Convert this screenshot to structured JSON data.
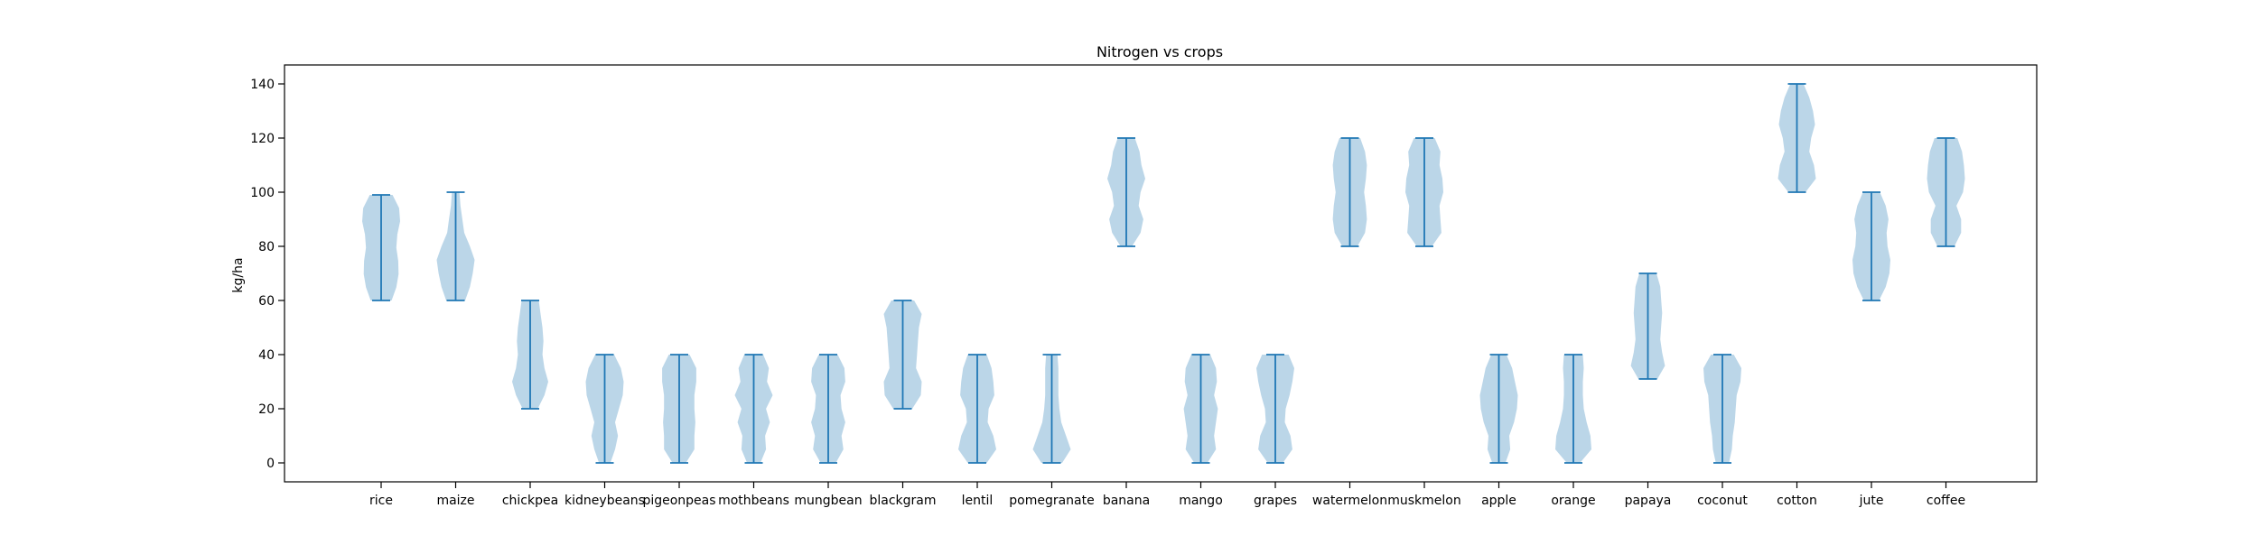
{
  "colors": {
    "violin_fill": "#1f77b4",
    "violin_line": "#1f77b4",
    "axis": "#000000",
    "background": "#ffffff"
  },
  "chart_data": {
    "type": "violin",
    "title": "Nitrogen vs crops",
    "xlabel": "",
    "ylabel": "kg/ha",
    "ylim": [
      -7,
      147
    ],
    "yticks": [
      0,
      20,
      40,
      60,
      80,
      100,
      120,
      140
    ],
    "grid": false,
    "categories": [
      "rice",
      "maize",
      "chickpea",
      "kidneybeans",
      "pigeonpeas",
      "mothbeans",
      "mungbean",
      "blackgram",
      "lentil",
      "pomegranate",
      "banana",
      "mango",
      "grapes",
      "watermelon",
      "muskmelon",
      "apple",
      "orange",
      "papaya",
      "coconut",
      "cotton",
      "jute",
      "coffee"
    ],
    "ranges": [
      [
        60,
        99
      ],
      [
        60,
        100
      ],
      [
        20,
        60
      ],
      [
        0,
        40
      ],
      [
        0,
        40
      ],
      [
        0,
        40
      ],
      [
        0,
        40
      ],
      [
        20,
        60
      ],
      [
        0,
        40
      ],
      [
        0,
        40
      ],
      [
        80,
        120
      ],
      [
        0,
        40
      ],
      [
        0,
        40
      ],
      [
        80,
        120
      ],
      [
        80,
        120
      ],
      [
        0,
        40
      ],
      [
        0,
        40
      ],
      [
        31,
        70
      ],
      [
        0,
        40
      ],
      [
        100,
        140
      ],
      [
        60,
        100
      ],
      [
        80,
        120
      ]
    ],
    "density_profiles": [
      [
        0.55,
        0.8,
        0.92,
        0.9,
        0.8,
        0.85,
        1.0,
        0.95,
        0.6
      ],
      [
        0.5,
        0.75,
        0.9,
        1.0,
        0.75,
        0.45,
        0.35,
        0.25,
        0.2
      ],
      [
        0.4,
        0.75,
        0.95,
        0.75,
        0.65,
        0.7,
        0.65,
        0.55,
        0.45
      ],
      [
        0.3,
        0.55,
        0.7,
        0.55,
        0.75,
        0.95,
        1.0,
        0.85,
        0.5
      ],
      [
        0.35,
        0.8,
        0.8,
        0.85,
        0.8,
        0.8,
        0.9,
        0.9,
        0.55
      ],
      [
        0.35,
        0.65,
        0.6,
        0.85,
        0.65,
        1.0,
        0.7,
        0.8,
        0.5
      ],
      [
        0.4,
        0.8,
        0.7,
        0.9,
        0.7,
        0.65,
        0.9,
        0.85,
        0.5
      ],
      [
        0.5,
        0.95,
        1.0,
        0.7,
        0.75,
        0.8,
        0.85,
        1.0,
        0.6
      ],
      [
        0.5,
        1.0,
        0.85,
        0.55,
        0.6,
        0.9,
        0.85,
        0.75,
        0.5
      ],
      [
        0.55,
        1.0,
        0.75,
        0.5,
        0.4,
        0.35,
        0.35,
        0.35,
        0.3
      ],
      [
        0.3,
        0.75,
        0.9,
        0.65,
        0.75,
        1.0,
        0.8,
        0.7,
        0.45
      ],
      [
        0.35,
        0.8,
        0.7,
        0.8,
        0.9,
        0.7,
        0.85,
        0.8,
        0.5
      ],
      [
        0.4,
        0.9,
        0.8,
        0.5,
        0.55,
        0.75,
        0.9,
        1.0,
        0.7
      ],
      [
        0.4,
        0.8,
        0.9,
        0.85,
        0.75,
        0.85,
        0.9,
        0.8,
        0.55
      ],
      [
        0.4,
        0.9,
        0.85,
        0.8,
        1.0,
        0.95,
        0.8,
        0.85,
        0.55
      ],
      [
        0.35,
        0.6,
        0.55,
        0.8,
        0.95,
        1.0,
        0.85,
        0.7,
        0.4
      ],
      [
        0.35,
        0.95,
        0.9,
        0.7,
        0.55,
        0.5,
        0.5,
        0.55,
        0.5
      ],
      [
        0.5,
        0.9,
        0.75,
        0.65,
        0.7,
        0.75,
        0.7,
        0.65,
        0.45
      ],
      [
        0.35,
        0.5,
        0.55,
        0.65,
        0.7,
        0.75,
        0.95,
        1.0,
        0.6
      ],
      [
        0.45,
        1.0,
        0.9,
        0.65,
        0.75,
        0.95,
        0.85,
        0.65,
        0.35
      ],
      [
        0.4,
        0.75,
        0.95,
        1.0,
        0.85,
        0.8,
        0.9,
        0.75,
        0.45
      ],
      [
        0.45,
        0.8,
        0.8,
        0.55,
        0.9,
        1.0,
        0.95,
        0.85,
        0.6
      ]
    ]
  }
}
